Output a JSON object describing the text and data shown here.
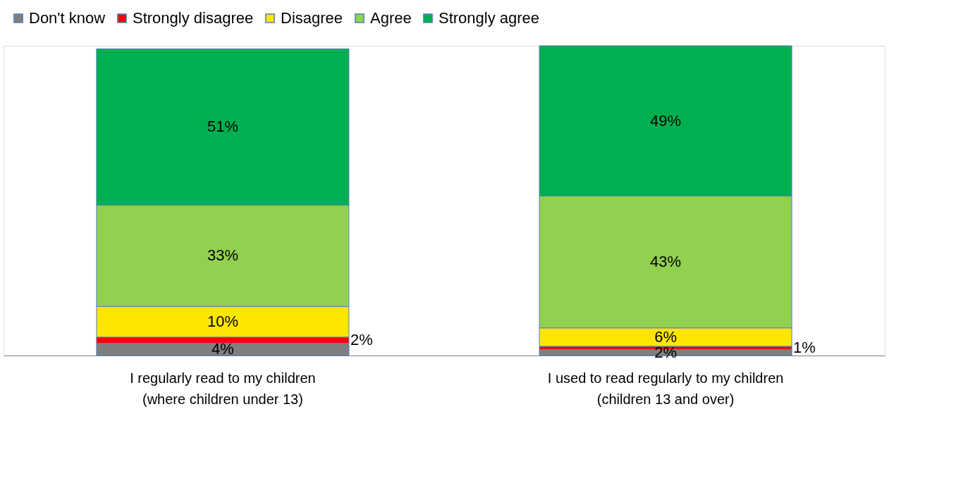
{
  "chart_data": {
    "type": "bar",
    "stacked": true,
    "legend": "top",
    "grid": false,
    "categories": [
      "I regularly read to my children\n(where children under 13)",
      "I used to read regularly to my children\n(children 13 and over)"
    ],
    "series": [
      {
        "name": "Don't know",
        "color": "#7f7f7f",
        "values": [
          4,
          2
        ],
        "value_labels": [
          "4%",
          "2%"
        ]
      },
      {
        "name": "Strongly disagree",
        "color": "#ff0000",
        "values": [
          2,
          1
        ],
        "value_labels": [
          "2%",
          "1%"
        ]
      },
      {
        "name": "Disagree",
        "color": "#ffe600",
        "values": [
          10,
          6
        ],
        "value_labels": [
          "10%",
          "6%"
        ]
      },
      {
        "name": "Agree",
        "color": "#92d050",
        "values": [
          33,
          43
        ],
        "value_labels": [
          "33%",
          "43%"
        ]
      },
      {
        "name": "Strongly agree",
        "color": "#00b050",
        "values": [
          51,
          49
        ],
        "value_labels": [
          "51%",
          "49%"
        ]
      }
    ]
  }
}
